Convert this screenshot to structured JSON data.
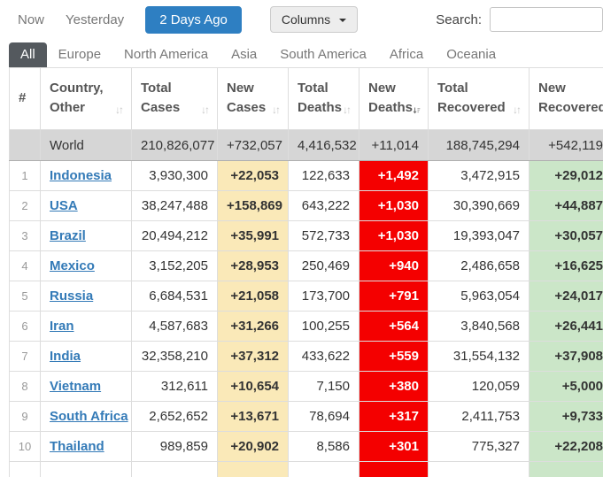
{
  "toolbar": {
    "now_label": "Now",
    "yesterday_label": "Yesterday",
    "two_days_label": "2 Days Ago",
    "columns_label": "Columns",
    "search_label": "Search:",
    "search_value": ""
  },
  "tabs": [
    {
      "label": "All",
      "active": true
    },
    {
      "label": "Europe",
      "active": false
    },
    {
      "label": "North America",
      "active": false
    },
    {
      "label": "Asia",
      "active": false
    },
    {
      "label": "South America",
      "active": false
    },
    {
      "label": "Africa",
      "active": false
    },
    {
      "label": "Oceania",
      "active": false
    }
  ],
  "table": {
    "headers": [
      {
        "line1": "",
        "line2": "#",
        "sort": "none"
      },
      {
        "line1": "Country,",
        "line2": "Other",
        "sort": "both"
      },
      {
        "line1": "Total",
        "line2": "Cases",
        "sort": "both"
      },
      {
        "line1": "New",
        "line2": "Cases",
        "sort": "both"
      },
      {
        "line1": "Total",
        "line2": "Deaths",
        "sort": "both"
      },
      {
        "line1": "New",
        "line2": "Deaths",
        "sort": "desc"
      },
      {
        "line1": "Total",
        "line2": "Recovered",
        "sort": "both"
      },
      {
        "line1": "New",
        "line2": "Recovered",
        "sort": "both"
      }
    ],
    "world_row": {
      "rank": "",
      "country": "World",
      "total_cases": "210,826,077",
      "new_cases": "+732,057",
      "total_deaths": "4,416,532",
      "new_deaths": "+11,014",
      "total_recovered": "188,745,294",
      "new_recovered": "+542,119"
    },
    "rows": [
      {
        "rank": "1",
        "country": "Indonesia",
        "total_cases": "3,930,300",
        "new_cases": "+22,053",
        "total_deaths": "122,633",
        "new_deaths": "+1,492",
        "total_recovered": "3,472,915",
        "new_recovered": "+29,012"
      },
      {
        "rank": "2",
        "country": "USA",
        "total_cases": "38,247,488",
        "new_cases": "+158,869",
        "total_deaths": "643,222",
        "new_deaths": "+1,030",
        "total_recovered": "30,390,669",
        "new_recovered": "+44,887"
      },
      {
        "rank": "3",
        "country": "Brazil",
        "total_cases": "20,494,212",
        "new_cases": "+35,991",
        "total_deaths": "572,733",
        "new_deaths": "+1,030",
        "total_recovered": "19,393,047",
        "new_recovered": "+30,057"
      },
      {
        "rank": "4",
        "country": "Mexico",
        "total_cases": "3,152,205",
        "new_cases": "+28,953",
        "total_deaths": "250,469",
        "new_deaths": "+940",
        "total_recovered": "2,486,658",
        "new_recovered": "+16,625"
      },
      {
        "rank": "5",
        "country": "Russia",
        "total_cases": "6,684,531",
        "new_cases": "+21,058",
        "total_deaths": "173,700",
        "new_deaths": "+791",
        "total_recovered": "5,963,054",
        "new_recovered": "+24,017"
      },
      {
        "rank": "6",
        "country": "Iran",
        "total_cases": "4,587,683",
        "new_cases": "+31,266",
        "total_deaths": "100,255",
        "new_deaths": "+564",
        "total_recovered": "3,840,568",
        "new_recovered": "+26,441"
      },
      {
        "rank": "7",
        "country": "India",
        "total_cases": "32,358,210",
        "new_cases": "+37,312",
        "total_deaths": "433,622",
        "new_deaths": "+559",
        "total_recovered": "31,554,132",
        "new_recovered": "+37,908"
      },
      {
        "rank": "8",
        "country": "Vietnam",
        "total_cases": "312,611",
        "new_cases": "+10,654",
        "total_deaths": "7,150",
        "new_deaths": "+380",
        "total_recovered": "120,059",
        "new_recovered": "+5,000"
      },
      {
        "rank": "9",
        "country": "South Africa",
        "total_cases": "2,652,652",
        "new_cases": "+13,671",
        "total_deaths": "78,694",
        "new_deaths": "+317",
        "total_recovered": "2,411,753",
        "new_recovered": "+9,733"
      },
      {
        "rank": "10",
        "country": "Thailand",
        "total_cases": "989,859",
        "new_cases": "+20,902",
        "total_deaths": "8,586",
        "new_deaths": "+301",
        "total_recovered": "775,327",
        "new_recovered": "+22,208"
      }
    ]
  },
  "colors": {
    "accent_blue": "#2e7fc2",
    "link_blue": "#337ab7",
    "tab_active_bg": "#54595e",
    "new_cases_bg": "#FAE9B8",
    "new_deaths_bg": "#F40000",
    "new_recovered_bg": "#CBE6C8",
    "world_row_bg": "#D6D6D6"
  }
}
